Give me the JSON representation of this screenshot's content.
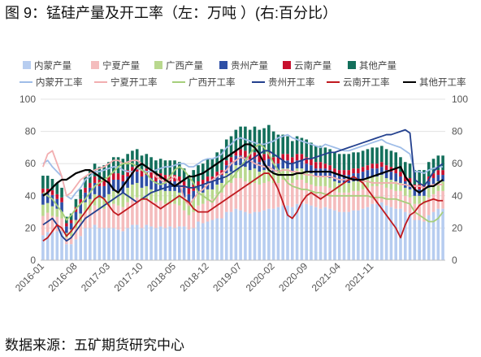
{
  "title": "图 9：锰硅产量及开工率（左：万吨 ）(右:百分比）",
  "source": "数据来源：五矿期货研究中心",
  "chart_data": {
    "type": "bar",
    "stacked_bars": true,
    "dual_axis": true,
    "start_month": "2016-01",
    "x_ticks": [
      "2016-01",
      "2016-08",
      "2017-03",
      "2017-10",
      "2018-05",
      "2018-12",
      "2019-07",
      "2020-02",
      "2020-09",
      "2021-04",
      "2021-11"
    ],
    "ylim_left": [
      0,
      100
    ],
    "ylim_right": [
      0,
      100
    ],
    "y_ticks_left": [
      0,
      20,
      40,
      60,
      80,
      100
    ],
    "y_ticks_right": [
      0,
      20,
      40,
      60,
      80,
      100
    ],
    "grid": true,
    "legend_position": "top",
    "series": [
      {
        "name": "内蒙产量",
        "kind": "bar",
        "axis": "left",
        "color": "#b7cdf0",
        "values": [
          15.5,
          17.5,
          17.5,
          18,
          18,
          10,
          10,
          13,
          15,
          20,
          20,
          22,
          20,
          20,
          20,
          20,
          19,
          18,
          20,
          22,
          22,
          20,
          22,
          21,
          20,
          21,
          20,
          21,
          20,
          21,
          21,
          19,
          20,
          24,
          23,
          24,
          25,
          26,
          26,
          30,
          30,
          32,
          31,
          30,
          29,
          30,
          30,
          31,
          32,
          32,
          33,
          34,
          34,
          33,
          35,
          36,
          35,
          34,
          33,
          32,
          33,
          32,
          31,
          30,
          30,
          30,
          31,
          31,
          32,
          33,
          35,
          35,
          36,
          34,
          33,
          32,
          32,
          30,
          29,
          25,
          25,
          24,
          28,
          30,
          32,
          32
        ]
      },
      {
        "name": "宁夏产量",
        "kind": "bar",
        "axis": "left",
        "color": "#f4bcbd",
        "values": [
          12,
          12,
          10,
          9,
          8,
          4,
          5,
          7,
          9,
          10,
          11,
          12,
          12,
          12,
          14,
          15,
          15,
          15,
          16,
          16,
          17,
          17,
          16,
          16,
          16,
          16,
          15,
          14,
          15,
          13,
          10,
          9,
          10,
          10,
          12,
          13,
          13,
          15,
          16,
          17,
          18,
          19,
          20,
          19,
          18,
          18,
          17,
          17,
          17,
          16,
          15,
          16,
          16,
          15,
          15,
          14,
          13,
          13,
          13,
          14,
          13,
          13,
          12,
          12,
          12,
          12,
          12,
          12,
          12,
          12,
          11,
          11,
          11,
          11,
          11,
          11,
          11,
          10,
          10,
          10,
          10,
          11,
          11,
          11,
          11,
          11
        ]
      },
      {
        "name": "广西产量",
        "kind": "bar",
        "axis": "left",
        "color": "#b9d88e",
        "values": [
          7,
          6,
          6,
          5,
          4,
          3,
          4,
          5,
          5,
          6,
          7,
          7,
          7,
          7,
          7,
          8,
          9,
          9,
          9,
          9,
          9,
          8,
          8,
          7,
          7,
          7,
          8,
          8,
          8,
          8,
          8,
          8,
          8,
          7,
          7,
          7,
          6,
          6,
          6,
          7,
          7,
          8,
          8,
          9,
          9,
          9,
          8,
          8,
          8,
          7,
          7,
          7,
          7,
          7,
          7,
          7,
          7,
          7,
          6,
          6,
          6,
          6,
          6,
          6,
          6,
          6,
          6,
          6,
          6,
          6,
          6,
          6,
          6,
          6,
          6,
          6,
          5,
          5,
          5,
          5,
          5,
          5,
          6,
          6,
          6,
          6
        ]
      },
      {
        "name": "贵州产量",
        "kind": "bar",
        "axis": "left",
        "color": "#2e4fa6",
        "values": [
          7,
          6,
          7,
          6,
          6,
          4,
          4,
          5,
          6,
          6,
          7,
          7,
          7,
          7,
          7,
          7,
          7,
          7,
          7,
          7,
          7,
          7,
          7,
          7,
          6,
          6,
          6,
          6,
          6,
          6,
          6,
          5,
          5,
          5,
          5,
          5,
          5,
          5,
          5,
          5,
          6,
          6,
          6,
          6,
          6,
          6,
          6,
          6,
          6,
          5,
          5,
          5,
          5,
          5,
          5,
          5,
          5,
          5,
          5,
          5,
          5,
          5,
          5,
          5,
          5,
          5,
          5,
          5,
          5,
          5,
          5,
          5,
          5,
          5,
          5,
          5,
          4,
          4,
          4,
          4,
          4,
          4,
          4,
          4,
          4,
          4
        ]
      },
      {
        "name": "云南产量",
        "kind": "bar",
        "axis": "left",
        "color": "#c8102e",
        "values": [
          3,
          3,
          3,
          3,
          3,
          2,
          2,
          3,
          3,
          3,
          3,
          4,
          4,
          4,
          4,
          4,
          4,
          4,
          4,
          4,
          4,
          4,
          4,
          4,
          4,
          4,
          4,
          4,
          4,
          4,
          4,
          4,
          4,
          3,
          3,
          3,
          3,
          3,
          3,
          3,
          3,
          3,
          4,
          4,
          4,
          4,
          4,
          4,
          4,
          4,
          4,
          4,
          4,
          4,
          4,
          4,
          4,
          4,
          4,
          4,
          3,
          3,
          3,
          3,
          3,
          3,
          3,
          3,
          3,
          3,
          3,
          3,
          3,
          3,
          3,
          3,
          3,
          3,
          3,
          3,
          3,
          3,
          3,
          3,
          3,
          3
        ]
      },
      {
        "name": "其他产量",
        "kind": "bar",
        "axis": "left",
        "color": "#136f5b",
        "values": [
          8,
          8,
          7,
          7,
          6,
          4,
          4,
          5,
          6,
          7,
          8,
          8,
          8,
          9,
          9,
          10,
          10,
          10,
          10,
          10,
          10,
          9,
          9,
          9,
          9,
          9,
          9,
          9,
          9,
          9,
          8,
          8,
          9,
          10,
          10,
          11,
          11,
          12,
          13,
          13,
          13,
          13,
          14,
          15,
          15,
          16,
          16,
          16,
          17,
          16,
          14,
          12,
          11,
          10,
          11,
          10,
          11,
          10,
          10,
          10,
          10,
          10,
          10,
          10,
          10,
          10,
          10,
          10,
          10,
          10,
          10,
          10,
          10,
          10,
          10,
          10,
          9,
          9,
          9,
          9,
          9,
          9,
          9,
          9,
          9,
          9
        ]
      },
      {
        "name": "内蒙开工率",
        "kind": "line",
        "axis": "right",
        "color": "#9fbde8",
        "values": [
          60,
          62,
          58,
          55,
          52,
          40,
          38,
          42,
          45,
          50,
          52,
          55,
          55,
          56,
          57,
          58,
          58,
          56,
          55,
          55,
          57,
          56,
          55,
          55,
          56,
          57,
          58,
          58,
          59,
          60,
          60,
          58,
          58,
          60,
          62,
          63,
          63,
          64,
          66,
          70,
          72,
          75,
          76,
          75,
          74,
          73,
          72,
          72,
          73,
          74,
          76,
          77,
          78,
          76,
          75,
          74,
          73,
          72,
          71,
          70,
          72,
          71,
          70,
          69,
          68,
          68,
          69,
          70,
          71,
          72,
          73,
          74,
          75,
          73,
          72,
          71,
          70,
          68,
          66,
          55,
          55,
          54,
          56,
          57,
          58,
          58
        ]
      },
      {
        "name": "宁夏开工率",
        "kind": "line",
        "axis": "right",
        "color": "#f2aeb0",
        "values": [
          58,
          66,
          68,
          60,
          52,
          40,
          42,
          46,
          50,
          52,
          54,
          56,
          57,
          58,
          60,
          62,
          62,
          60,
          61,
          62,
          62,
          60,
          58,
          56,
          52,
          50,
          48,
          50,
          52,
          48,
          38,
          34,
          38,
          42,
          44,
          47,
          50,
          52,
          54,
          56,
          60,
          62,
          64,
          63,
          62,
          60,
          59,
          58,
          58,
          56,
          55,
          56,
          56,
          55,
          55,
          54,
          53,
          53,
          52,
          52,
          52,
          52,
          51,
          50,
          50,
          50,
          50,
          50,
          49,
          49,
          48,
          48,
          48,
          48,
          48,
          48,
          47,
          47,
          46,
          46,
          46,
          45,
          46,
          47,
          47,
          47
        ]
      },
      {
        "name": "广西开工率",
        "kind": "line",
        "axis": "right",
        "color": "#a6cf7b",
        "values": [
          42,
          40,
          38,
          34,
          30,
          25,
          28,
          32,
          35,
          38,
          42,
          46,
          48,
          50,
          52,
          55,
          58,
          60,
          60,
          60,
          58,
          56,
          54,
          50,
          48,
          47,
          48,
          52,
          56,
          58,
          56,
          52,
          48,
          42,
          40,
          38,
          36,
          40,
          44,
          48,
          50,
          54,
          58,
          62,
          66,
          70,
          72,
          70,
          66,
          60,
          56,
          52,
          48,
          46,
          45,
          44,
          44,
          43,
          42,
          42,
          41,
          40,
          40,
          40,
          40,
          40,
          40,
          40,
          40,
          40,
          39,
          39,
          39,
          38,
          38,
          38,
          37,
          36,
          35,
          30,
          28,
          26,
          24,
          24,
          26,
          30
        ]
      },
      {
        "name": "贵州开工率",
        "kind": "line",
        "axis": "right",
        "color": "#23408e",
        "values": [
          22,
          24,
          26,
          22,
          15,
          12,
          14,
          18,
          22,
          26,
          28,
          30,
          32,
          34,
          36,
          38,
          40,
          42,
          40,
          38,
          36,
          38,
          40,
          42,
          43,
          44,
          45,
          46,
          46,
          46,
          46,
          45,
          45,
          46,
          47,
          48,
          49,
          50,
          51,
          52,
          54,
          56,
          58,
          60,
          62,
          64,
          66,
          68,
          68,
          66,
          64,
          62,
          60,
          60,
          61,
          62,
          63,
          63,
          64,
          65,
          66,
          67,
          67,
          68,
          69,
          70,
          71,
          72,
          73,
          74,
          75,
          76,
          77,
          78,
          78,
          79,
          80,
          81,
          79,
          50,
          48,
          46,
          50,
          55,
          58,
          60
        ]
      },
      {
        "name": "云南开工率",
        "kind": "line",
        "axis": "right",
        "color": "#c0191f",
        "values": [
          12,
          14,
          18,
          22,
          20,
          15,
          18,
          22,
          26,
          30,
          34,
          38,
          40,
          38,
          34,
          30,
          28,
          30,
          32,
          34,
          36,
          38,
          38,
          36,
          34,
          32,
          34,
          36,
          38,
          40,
          38,
          36,
          32,
          30,
          30,
          30,
          32,
          34,
          36,
          38,
          40,
          42,
          44,
          46,
          48,
          50,
          52,
          54,
          54,
          50,
          44,
          36,
          28,
          26,
          30,
          36,
          40,
          42,
          40,
          38,
          40,
          42,
          44,
          46,
          48,
          50,
          52,
          50,
          48,
          44,
          40,
          36,
          32,
          28,
          24,
          20,
          14,
          22,
          28,
          30,
          34,
          36,
          37,
          38,
          37,
          37
        ]
      },
      {
        "name": "其他开工率",
        "kind": "line",
        "axis": "right",
        "color": "#000000",
        "values": [
          40,
          42,
          45,
          48,
          50,
          50,
          52,
          54,
          55,
          56,
          56,
          54,
          52,
          50,
          48,
          44,
          42,
          46,
          50,
          54,
          58,
          60,
          58,
          56,
          54,
          52,
          50,
          48,
          46,
          48,
          50,
          52,
          52,
          53,
          54,
          56,
          58,
          60,
          62,
          64,
          66,
          68,
          70,
          72,
          72,
          70,
          66,
          60,
          56,
          54,
          53,
          53,
          53,
          53,
          54,
          54,
          55,
          55,
          55,
          55,
          55,
          55,
          54,
          53,
          52,
          51,
          50,
          50,
          50,
          51,
          52,
          53,
          54,
          55,
          56,
          57,
          58,
          52,
          48,
          44,
          42,
          44,
          46,
          46,
          48,
          50
        ]
      }
    ]
  }
}
